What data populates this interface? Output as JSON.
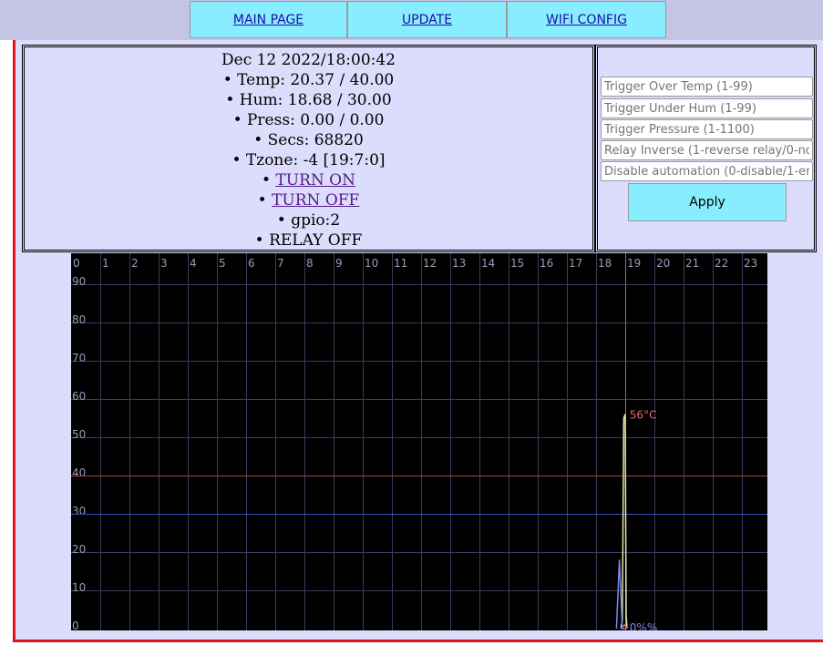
{
  "nav": {
    "items": [
      {
        "label": "MAIN PAGE"
      },
      {
        "label": "UPDATE"
      },
      {
        "label": "WIFI CONFIG"
      }
    ]
  },
  "status": {
    "datetime": "Dec 12 2022/18:00:42",
    "temp": "• Temp: 20.37 / 40.00",
    "hum": "• Hum: 18.68 / 30.00",
    "press": "• Press: 0.00 / 0.00",
    "secs": "• Secs: 68820",
    "tzone": "• Tzone: -4 [19:7:0]",
    "turn_on_bullet": "• ",
    "turn_on": "TURN ON",
    "turn_off_bullet": "• ",
    "turn_off": "TURN OFF",
    "gpio": "• gpio:2",
    "relay": "• RELAY OFF"
  },
  "settings": {
    "trigger_over_temp_placeholder": "Trigger Over Temp (1-99)",
    "trigger_under_hum_placeholder": "Trigger Under Hum (1-99)",
    "trigger_pressure_placeholder": "Trigger Pressure (1-1100)",
    "relay_inverse_placeholder": "Relay Inverse (1-reverse relay/0-no",
    "disable_automation_placeholder": "Disable automation (0-disable/1-er",
    "apply_label": "Apply"
  },
  "chart_data": {
    "type": "line",
    "x_ticks": [
      "0",
      "1",
      "2",
      "3",
      "4",
      "5",
      "6",
      "7",
      "8",
      "9",
      "10",
      "11",
      "12",
      "13",
      "14",
      "15",
      "16",
      "17",
      "18",
      "19",
      "20",
      "21",
      "22",
      "23"
    ],
    "y_ticks": [
      "90",
      "80",
      "70",
      "60",
      "50",
      "40",
      "30",
      "20",
      "10",
      "0"
    ],
    "xlim": [
      0,
      24
    ],
    "ylim": [
      0,
      98
    ],
    "grid": true,
    "background": "#000000",
    "thresholds": [
      {
        "value": 40,
        "color": "#b03a3a"
      },
      {
        "value": 30,
        "color": "#3a4ac0"
      }
    ],
    "current_time_marker": {
      "x": 19.0,
      "color": "#2fae2f"
    },
    "series": [
      {
        "color": "#e8e0a0",
        "points": [
          [
            18.85,
            0
          ],
          [
            18.9,
            2
          ],
          [
            18.95,
            55
          ],
          [
            19.0,
            56
          ],
          [
            19.03,
            4
          ],
          [
            19.06,
            0
          ]
        ]
      },
      {
        "color": "#e86a6a",
        "points": [
          [
            18.85,
            0
          ],
          [
            18.9,
            0.5
          ],
          [
            19.0,
            1
          ],
          [
            19.05,
            0
          ]
        ]
      },
      {
        "color": "#7a8ae8",
        "points": [
          [
            18.7,
            0
          ],
          [
            18.8,
            18
          ],
          [
            18.9,
            0
          ],
          [
            19.0,
            0
          ]
        ]
      }
    ],
    "annotations": [
      {
        "text": "56°C",
        "x": 19.15,
        "y": 56,
        "color": "#f06060"
      },
      {
        "text": "0%%",
        "x": 19.15,
        "y": 0.5,
        "color": "#7a8ae8"
      }
    ]
  }
}
